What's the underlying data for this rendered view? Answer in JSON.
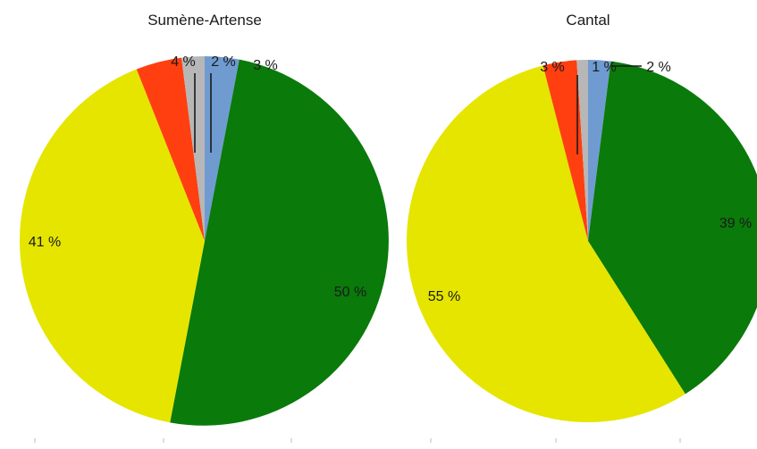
{
  "chart_data": [
    {
      "type": "pie",
      "title": "Sumène-Artense",
      "slices": [
        {
          "label": "3 %",
          "value": 3,
          "color": "#6f9bd1"
        },
        {
          "label": "50 %",
          "value": 50,
          "color": "#0a7a0a"
        },
        {
          "label": "41 %",
          "value": 41,
          "color": "#e5e500"
        },
        {
          "label": "4 %",
          "value": 4,
          "color": "#ff3f0f"
        },
        {
          "label": "2 %",
          "value": 2,
          "color": "#b7b7b7"
        }
      ]
    },
    {
      "type": "pie",
      "title": "Cantal",
      "slices": [
        {
          "label": "2 %",
          "value": 2,
          "color": "#6f9bd1"
        },
        {
          "label": "39 %",
          "value": 39,
          "color": "#0a7a0a"
        },
        {
          "label": "55 %",
          "value": 55,
          "color": "#e5e500"
        },
        {
          "label": "3 %",
          "value": 3,
          "color": "#ff3f0f"
        },
        {
          "label": "1 %",
          "value": 1,
          "color": "#b7b7b7"
        }
      ]
    }
  ]
}
